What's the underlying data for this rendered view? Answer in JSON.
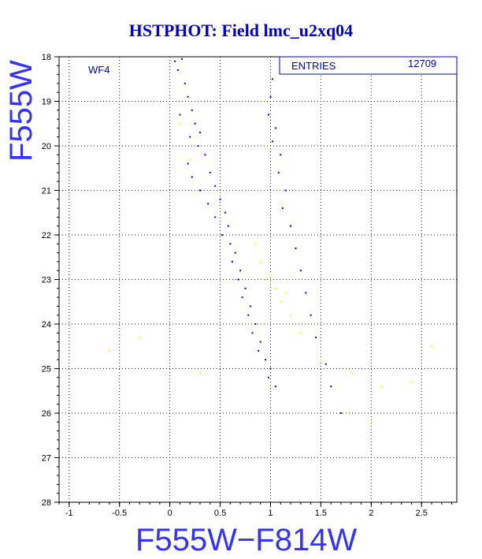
{
  "chart_data": {
    "type": "scatter",
    "title": "HSTPHOT: Field lmc_u2xq04",
    "xlabel": "F555W−F814W",
    "ylabel": "F555W",
    "xlim": [
      -1.1,
      2.85
    ],
    "ylim": [
      28,
      18
    ],
    "y_inverted": true,
    "x_ticks": [
      "-1",
      "-0.5",
      "0",
      "0.5",
      "1",
      "1.5",
      "2",
      "2.5"
    ],
    "x_tick_values": [
      -1,
      -0.5,
      0,
      0.5,
      1,
      1.5,
      2,
      2.5
    ],
    "y_ticks": [
      "18",
      "19",
      "20",
      "21",
      "22",
      "23",
      "24",
      "25",
      "26",
      "27",
      "28"
    ],
    "y_tick_values": [
      18,
      19,
      20,
      21,
      22,
      23,
      24,
      25,
      26,
      27,
      28
    ],
    "grid": true,
    "annotation": "WF4",
    "stats_box": {
      "label": "ENTRIES",
      "value": "12709"
    },
    "series_colors": {
      "blue_stars": "#0000ff",
      "yellow_stars": "#ffff00"
    },
    "series": [
      {
        "color": "#0000ff",
        "points": [
          [
            0.05,
            18.1
          ],
          [
            0.12,
            18.05
          ],
          [
            0.08,
            18.3
          ],
          [
            0.15,
            18.6
          ],
          [
            0.18,
            18.9
          ],
          [
            0.22,
            19.2
          ],
          [
            0.1,
            19.3
          ],
          [
            0.25,
            19.5
          ],
          [
            0.3,
            19.7
          ],
          [
            0.2,
            19.8
          ],
          [
            0.28,
            20.0
          ],
          [
            0.35,
            20.2
          ],
          [
            0.18,
            20.4
          ],
          [
            0.4,
            20.6
          ],
          [
            0.22,
            20.7
          ],
          [
            0.45,
            20.9
          ],
          [
            0.3,
            21.0
          ],
          [
            0.5,
            21.2
          ],
          [
            0.38,
            21.3
          ],
          [
            0.55,
            21.5
          ],
          [
            0.45,
            21.6
          ],
          [
            0.58,
            21.8
          ],
          [
            0.52,
            22.0
          ],
          [
            0.6,
            22.2
          ],
          [
            0.65,
            22.4
          ],
          [
            0.62,
            22.6
          ],
          [
            0.7,
            22.8
          ],
          [
            0.68,
            23.0
          ],
          [
            0.75,
            23.2
          ],
          [
            0.72,
            23.4
          ],
          [
            0.8,
            23.6
          ],
          [
            0.78,
            23.8
          ],
          [
            0.85,
            24.0
          ],
          [
            0.82,
            24.2
          ],
          [
            0.9,
            24.4
          ],
          [
            0.88,
            24.6
          ],
          [
            0.95,
            24.8
          ],
          [
            1.0,
            25.0
          ],
          [
            0.98,
            25.2
          ],
          [
            1.05,
            25.4
          ],
          [
            1.02,
            18.5
          ],
          [
            1.0,
            18.9
          ],
          [
            0.98,
            19.3
          ],
          [
            1.05,
            19.6
          ],
          [
            1.02,
            19.9
          ],
          [
            1.1,
            20.2
          ],
          [
            1.08,
            20.6
          ],
          [
            1.15,
            21.0
          ],
          [
            1.12,
            21.4
          ],
          [
            1.2,
            21.8
          ],
          [
            1.25,
            22.3
          ],
          [
            1.3,
            22.8
          ],
          [
            1.35,
            23.3
          ],
          [
            1.4,
            23.8
          ],
          [
            1.45,
            24.3
          ],
          [
            1.55,
            24.9
          ],
          [
            1.6,
            25.4
          ],
          [
            1.7,
            26.0
          ]
        ]
      },
      {
        "color": "#ffff00",
        "points": [
          [
            0.1,
            19.5
          ],
          [
            0.2,
            20.3
          ],
          [
            0.85,
            22.2
          ],
          [
            0.9,
            22.6
          ],
          [
            1.0,
            22.9
          ],
          [
            1.05,
            23.2
          ],
          [
            1.1,
            23.5
          ],
          [
            1.15,
            23.3
          ],
          [
            0.95,
            23.0
          ],
          [
            1.2,
            23.8
          ],
          [
            1.3,
            24.2
          ],
          [
            1.5,
            24.8
          ],
          [
            1.8,
            25.1
          ],
          [
            2.1,
            25.4
          ],
          [
            2.4,
            25.3
          ],
          [
            2.6,
            24.5
          ],
          [
            -0.3,
            24.3
          ],
          [
            0.3,
            25.1
          ],
          [
            -0.6,
            24.6
          ],
          [
            2.0,
            26.2
          ]
        ]
      }
    ]
  }
}
